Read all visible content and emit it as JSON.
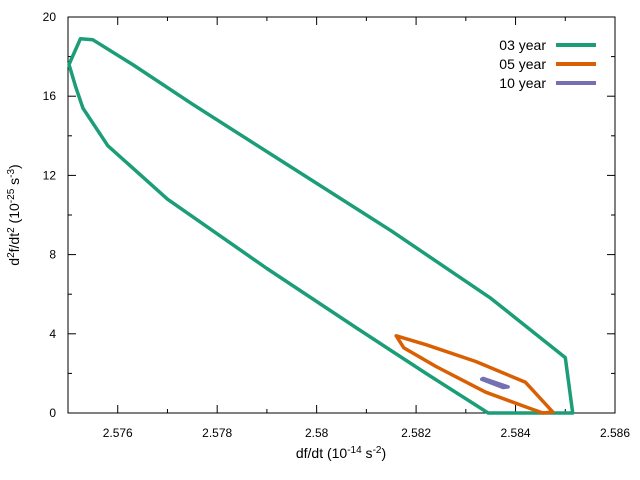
{
  "chart_data": {
    "type": "line",
    "title": "",
    "xlabel": {
      "parts": [
        {
          "text": "df/dt (10",
          "sup": false
        },
        {
          "text": "-14",
          "sup": true
        },
        {
          "text": " s",
          "sup": false
        },
        {
          "text": "-2",
          "sup": true
        },
        {
          "text": ")",
          "sup": false
        }
      ]
    },
    "ylabel": {
      "parts": [
        {
          "text": "d",
          "sup": false
        },
        {
          "text": "2",
          "sup": true
        },
        {
          "text": "f/dt",
          "sup": false
        },
        {
          "text": "2",
          "sup": true
        },
        {
          "text": " (10",
          "sup": false
        },
        {
          "text": "-25",
          "sup": true
        },
        {
          "text": " s",
          "sup": false
        },
        {
          "text": "-3",
          "sup": true
        },
        {
          "text": ")",
          "sup": false
        }
      ]
    },
    "xlim": [
      2.575,
      2.586
    ],
    "ylim": [
      0,
      20
    ],
    "xticks": [
      2.576,
      2.578,
      2.58,
      2.582,
      2.584,
      2.586
    ],
    "xtick_labels": [
      "2.576",
      "2.578",
      "2.58",
      "2.582",
      "2.584",
      "2.586"
    ],
    "yticks": [
      0,
      4,
      8,
      12,
      16,
      20
    ],
    "ytick_labels": [
      "0",
      "4",
      "8",
      "12",
      "16",
      "20"
    ],
    "legend_position": "top-right",
    "series": [
      {
        "name": "03 year",
        "color": "#1b9e77",
        "points": [
          [
            2.57525,
            18.9
          ],
          [
            2.5755,
            18.85
          ],
          [
            2.5763,
            17.6
          ],
          [
            2.5775,
            15.6
          ],
          [
            2.5795,
            12.4
          ],
          [
            2.5815,
            9.2
          ],
          [
            2.5835,
            5.8
          ],
          [
            2.585,
            2.8
          ],
          [
            2.58515,
            0.0
          ],
          [
            2.58345,
            0.0
          ],
          [
            2.5822,
            2.0
          ],
          [
            2.5808,
            4.3
          ],
          [
            2.579,
            7.3
          ],
          [
            2.577,
            10.8
          ],
          [
            2.5758,
            13.5
          ],
          [
            2.5753,
            15.4
          ],
          [
            2.57515,
            16.5
          ],
          [
            2.57502,
            17.6
          ],
          [
            2.57525,
            18.9
          ]
        ]
      },
      {
        "name": "05 year",
        "color": "#d95f02",
        "points": [
          [
            2.5816,
            3.9
          ],
          [
            2.5822,
            3.45
          ],
          [
            2.5832,
            2.6
          ],
          [
            2.5842,
            1.55
          ],
          [
            2.58475,
            0.05
          ],
          [
            2.58455,
            0.0
          ],
          [
            2.5843,
            0.22
          ],
          [
            2.5834,
            1.05
          ],
          [
            2.5824,
            2.35
          ],
          [
            2.58175,
            3.3
          ],
          [
            2.5816,
            3.9
          ]
        ]
      },
      {
        "name": "10 year",
        "color": "#7570b3",
        "points": [
          [
            2.58335,
            1.75
          ],
          [
            2.58385,
            1.32
          ],
          [
            2.58375,
            1.29
          ],
          [
            2.58332,
            1.7
          ],
          [
            2.58335,
            1.75
          ]
        ]
      }
    ]
  }
}
